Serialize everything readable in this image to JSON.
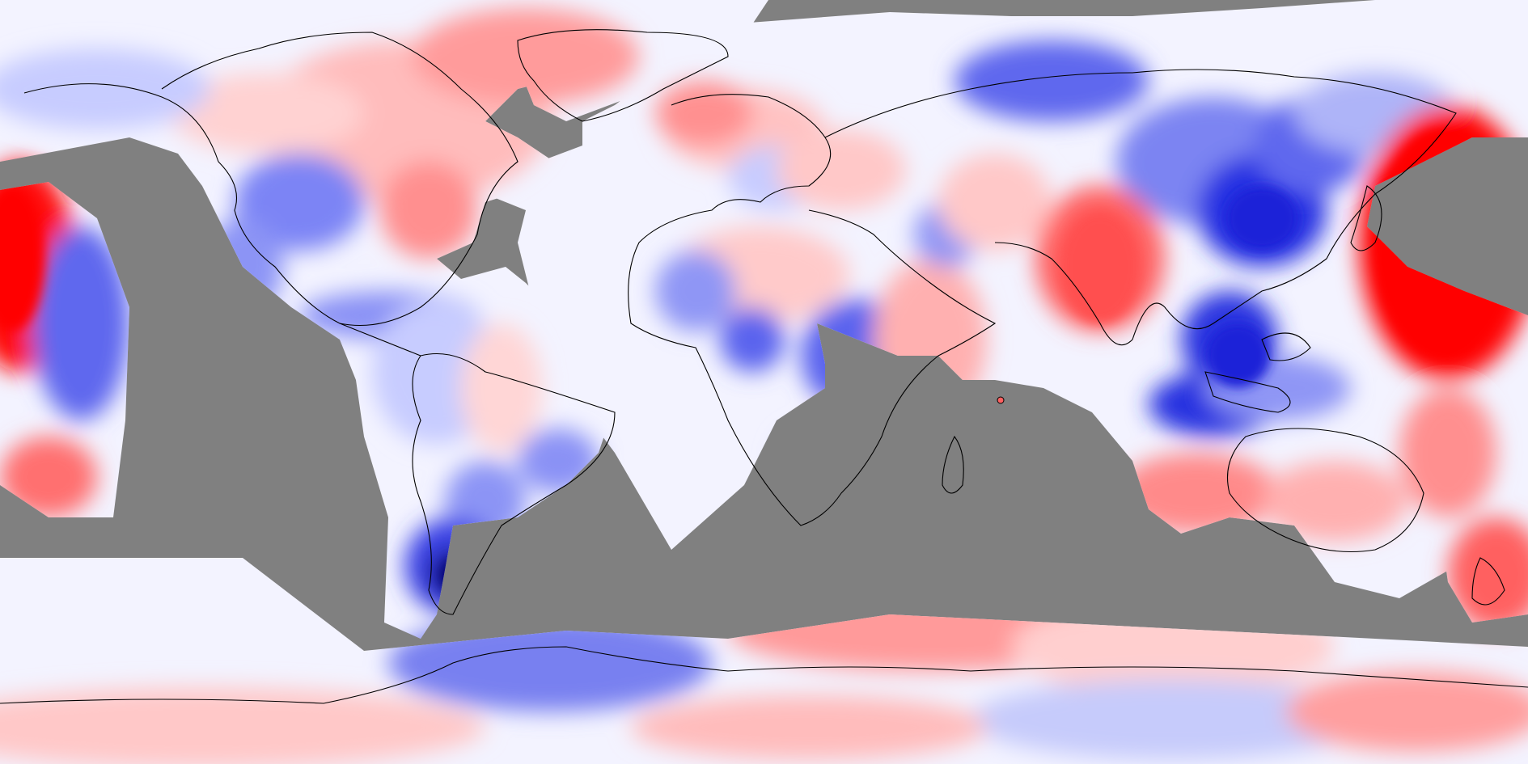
{
  "map": {
    "projection": "equirectangular",
    "extent": {
      "lon": [
        -180,
        180
      ],
      "lat": [
        -90,
        90
      ]
    },
    "colors": {
      "background_missing": "#808080",
      "coastline": "#000000",
      "positive_strong": "#ff0000",
      "positive_mid": "#ff8a8a",
      "positive_light": "#ffd6d6",
      "neutral": "#f5f5ff",
      "negative_light": "#d2d6ff",
      "negative_mid": "#7d86f0",
      "negative_strong": "#1e22e0",
      "negative_extreme": "#00008a"
    },
    "features": {
      "coastlines": true,
      "country_borders": true,
      "grid": false,
      "legend": false,
      "colorbar": false
    }
  }
}
